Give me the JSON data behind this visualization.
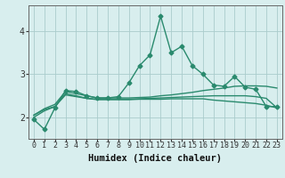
{
  "xlabel": "Humidex (Indice chaleur)",
  "xlim": [
    -0.5,
    23.5
  ],
  "ylim": [
    1.5,
    4.6
  ],
  "x": [
    0,
    1,
    2,
    3,
    4,
    5,
    6,
    7,
    8,
    9,
    10,
    11,
    12,
    13,
    14,
    15,
    16,
    17,
    18,
    19,
    20,
    21,
    22,
    23
  ],
  "line1": [
    1.95,
    1.72,
    2.22,
    2.62,
    2.6,
    2.5,
    2.45,
    2.45,
    2.48,
    2.8,
    3.2,
    3.45,
    4.35,
    3.5,
    3.65,
    3.2,
    3.0,
    2.75,
    2.72,
    2.95,
    2.7,
    2.65,
    2.25,
    2.25
  ],
  "line2": [
    2.05,
    2.2,
    2.3,
    2.6,
    2.55,
    2.5,
    2.45,
    2.45,
    2.45,
    2.45,
    2.46,
    2.47,
    2.5,
    2.52,
    2.55,
    2.58,
    2.62,
    2.65,
    2.68,
    2.72,
    2.73,
    2.73,
    2.72,
    2.68
  ],
  "line3": [
    2.05,
    2.18,
    2.25,
    2.55,
    2.5,
    2.44,
    2.42,
    2.42,
    2.42,
    2.42,
    2.43,
    2.44,
    2.45,
    2.46,
    2.47,
    2.48,
    2.49,
    2.5,
    2.5,
    2.5,
    2.5,
    2.48,
    2.44,
    2.22
  ],
  "line4": [
    2.0,
    2.15,
    2.25,
    2.52,
    2.48,
    2.44,
    2.41,
    2.41,
    2.41,
    2.41,
    2.42,
    2.42,
    2.42,
    2.43,
    2.43,
    2.43,
    2.43,
    2.4,
    2.38,
    2.36,
    2.34,
    2.32,
    2.28,
    2.22
  ],
  "line_color": "#2a8a6e",
  "bg_color": "#d8eeee",
  "grid_color": "#aacccc",
  "marker": "D",
  "marker_size": 2.5,
  "line_width": 1.0,
  "tick_fontsize": 6,
  "label_fontsize": 7.5
}
